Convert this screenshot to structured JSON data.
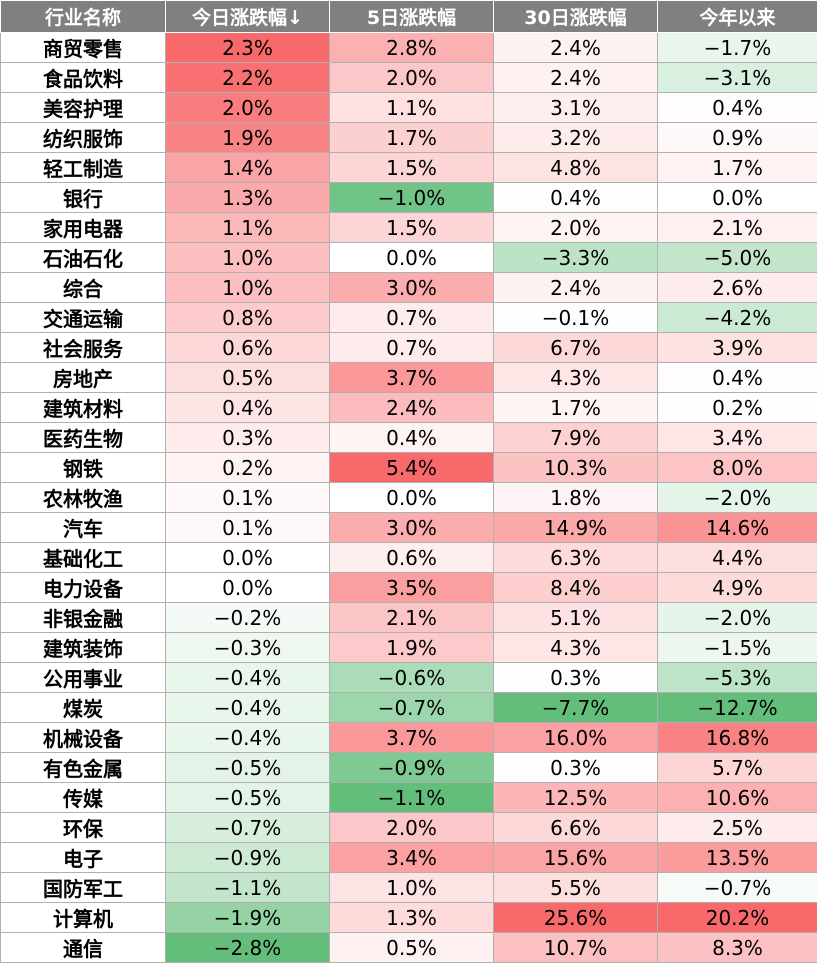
{
  "chart_data": {
    "type": "table",
    "columns": [
      "行业名称",
      "今日涨跌幅↓",
      "5日涨跌幅",
      "30日涨跌幅",
      "今年以来"
    ],
    "rows": [
      [
        "商贸零售",
        "2.3%",
        "2.8%",
        "2.4%",
        "−1.7%"
      ],
      [
        "食品饮料",
        "2.2%",
        "2.0%",
        "2.4%",
        "−3.1%"
      ],
      [
        "美容护理",
        "2.0%",
        "1.1%",
        "3.1%",
        "0.4%"
      ],
      [
        "纺织服饰",
        "1.9%",
        "1.7%",
        "3.2%",
        "0.9%"
      ],
      [
        "轻工制造",
        "1.4%",
        "1.5%",
        "4.8%",
        "1.7%"
      ],
      [
        "银行",
        "1.3%",
        "−1.0%",
        "0.4%",
        "0.0%"
      ],
      [
        "家用电器",
        "1.1%",
        "1.5%",
        "2.0%",
        "2.1%"
      ],
      [
        "石油石化",
        "1.0%",
        "0.0%",
        "−3.3%",
        "−5.0%"
      ],
      [
        "综合",
        "1.0%",
        "3.0%",
        "2.4%",
        "2.6%"
      ],
      [
        "交通运输",
        "0.8%",
        "0.7%",
        "−0.1%",
        "−4.2%"
      ],
      [
        "社会服务",
        "0.6%",
        "0.7%",
        "6.7%",
        "3.9%"
      ],
      [
        "房地产",
        "0.5%",
        "3.7%",
        "4.3%",
        "0.4%"
      ],
      [
        "建筑材料",
        "0.4%",
        "2.4%",
        "1.7%",
        "0.2%"
      ],
      [
        "医药生物",
        "0.3%",
        "0.4%",
        "7.9%",
        "3.4%"
      ],
      [
        "钢铁",
        "0.2%",
        "5.4%",
        "10.3%",
        "8.0%"
      ],
      [
        "农林牧渔",
        "0.1%",
        "0.0%",
        "1.8%",
        "−2.0%"
      ],
      [
        "汽车",
        "0.1%",
        "3.0%",
        "14.9%",
        "14.6%"
      ],
      [
        "基础化工",
        "0.0%",
        "0.6%",
        "6.3%",
        "4.4%"
      ],
      [
        "电力设备",
        "0.0%",
        "3.5%",
        "8.4%",
        "4.9%"
      ],
      [
        "非银金融",
        "−0.2%",
        "2.1%",
        "5.1%",
        "−2.0%"
      ],
      [
        "建筑装饰",
        "−0.3%",
        "1.9%",
        "4.3%",
        "−1.5%"
      ],
      [
        "公用事业",
        "−0.4%",
        "−0.6%",
        "0.3%",
        "−5.3%"
      ],
      [
        "煤炭",
        "−0.4%",
        "−0.7%",
        "−7.7%",
        "−12.7%"
      ],
      [
        "机械设备",
        "−0.4%",
        "3.7%",
        "16.0%",
        "16.8%"
      ],
      [
        "有色金属",
        "−0.5%",
        "−0.9%",
        "0.3%",
        "5.7%"
      ],
      [
        "传媒",
        "−0.5%",
        "−1.1%",
        "12.5%",
        "10.6%"
      ],
      [
        "环保",
        "−0.7%",
        "2.0%",
        "6.6%",
        "2.5%"
      ],
      [
        "电子",
        "−0.9%",
        "3.4%",
        "15.6%",
        "13.5%"
      ],
      [
        "国防军工",
        "−1.1%",
        "1.0%",
        "5.5%",
        "−0.7%"
      ],
      [
        "计算机",
        "−1.9%",
        "1.3%",
        "25.6%",
        "20.2%"
      ],
      [
        "通信",
        "−2.8%",
        "0.5%",
        "10.7%",
        "8.3%"
      ]
    ],
    "colors": {
      "header_bg": "#808080",
      "header_text": "#ffffff",
      "positive_max": "#f8696b",
      "negative_max": "#63be7b",
      "neutral": "#ffffff"
    }
  }
}
